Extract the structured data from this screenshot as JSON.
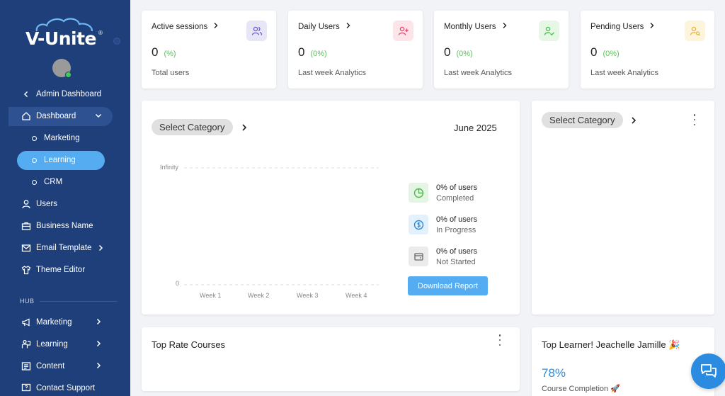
{
  "sidebar": {
    "logo": "V-Unite",
    "logo_reg": "®",
    "back_label": "Admin Dashboard",
    "dashboard_label": "Dashboard",
    "sub_items": [
      "Marketing",
      "Learning",
      "CRM"
    ],
    "users_label": "Users",
    "business_label": "Business Name",
    "email_label": "Email Template",
    "theme_label": "Theme Editor",
    "hub_label": "HUB",
    "hub_items": [
      "Marketing",
      "Learning",
      "Content",
      "Contact Support"
    ]
  },
  "stats": [
    {
      "title": "Active sessions",
      "value": "0",
      "pct": "(%)",
      "sub": "Total users",
      "icon": "users-icon",
      "bg": "#e6e6f7",
      "color": "#6a5acd"
    },
    {
      "title": "Daily Users",
      "value": "0",
      "pct": "(0%)",
      "sub": "Last week Analytics",
      "icon": "user-plus-icon",
      "bg": "#fde4e8",
      "color": "#e0446a"
    },
    {
      "title": "Monthly Users",
      "value": "0",
      "pct": "(0%)",
      "sub": "Last week Analytics",
      "icon": "user-check-icon",
      "bg": "#e6f7e6",
      "color": "#4cbb4c"
    },
    {
      "title": "Pending Users",
      "value": "0",
      "pct": "(0%)",
      "sub": "Last week Analytics",
      "icon": "user-search-icon",
      "bg": "#fdf4dc",
      "color": "#e8b43a"
    }
  ],
  "main_chart": {
    "category_label": "Select Category",
    "month": "June 2025",
    "y_top": "Infinity",
    "y_zero": "0",
    "weeks": [
      "Week 1",
      "Week 2",
      "Week 3",
      "Week 4"
    ],
    "legend": [
      {
        "t1": "0% of users",
        "t2": "Completed",
        "icon": "pie-chart-icon",
        "bg": "#e4f5e4",
        "color": "#4cbb4c"
      },
      {
        "t1": "0% of users",
        "t2": "In Progress",
        "icon": "dollar-circle-icon",
        "bg": "#e2f1fc",
        "color": "#2b8be0"
      },
      {
        "t1": "0% of users",
        "t2": "Not Started",
        "icon": "wallet-icon",
        "bg": "#ebebeb",
        "color": "#666"
      }
    ],
    "download_label": "Download Report"
  },
  "side_panel": {
    "category_label": "Select Category"
  },
  "top_rated": {
    "title": "Top Rate Courses"
  },
  "top_learner": {
    "title": "Top Learner! Jeachelle Jamille 🎉",
    "pct": "78%",
    "sub": "Course Completion 🚀"
  },
  "colors": {
    "sidebar": "#1e3f7a",
    "accent": "#55acf0",
    "success": "#5ac25a",
    "chat": "#2b8be0"
  }
}
